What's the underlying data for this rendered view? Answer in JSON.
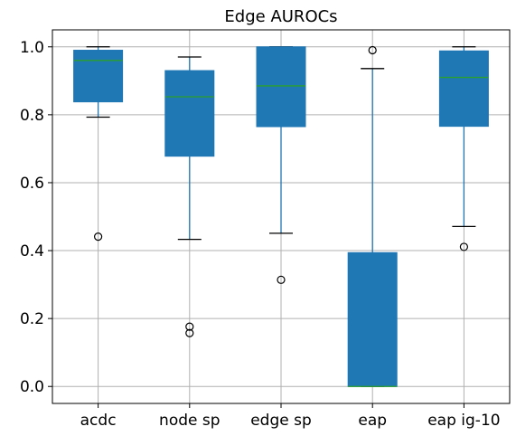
{
  "chart_data": {
    "type": "box",
    "title": "Edge AUROCs",
    "xlabel": "",
    "ylabel": "",
    "ylim": [
      -0.05,
      1.05
    ],
    "yticks": [
      0.0,
      0.2,
      0.4,
      0.6,
      0.8,
      1.0
    ],
    "ytick_labels": [
      "0.0",
      "0.2",
      "0.4",
      "0.6",
      "0.8",
      "1.0"
    ],
    "grid": true,
    "box_color": "#1f77b4",
    "median_color": "#2ca02c",
    "categories": [
      "acdc",
      "node sp",
      "edge sp",
      "eap",
      "eap ig-10"
    ],
    "boxes": [
      {
        "whisker_low": 0.793,
        "q1": 0.838,
        "median": 0.96,
        "q3": 0.99,
        "whisker_high": 1.0,
        "fliers": [
          0.441
        ]
      },
      {
        "whisker_low": 0.433,
        "q1": 0.678,
        "median": 0.853,
        "q3": 0.93,
        "whisker_high": 0.97,
        "fliers": [
          0.176,
          0.157
        ]
      },
      {
        "whisker_low": 0.451,
        "q1": 0.765,
        "median": 0.885,
        "q3": 1.0,
        "whisker_high": 1.0,
        "fliers": [
          0.314
        ]
      },
      {
        "whisker_low": 0.0,
        "q1": 0.0,
        "median": 0.0,
        "q3": 0.394,
        "whisker_high": 0.936,
        "fliers": [
          0.99
        ]
      },
      {
        "whisker_low": 0.471,
        "q1": 0.766,
        "median": 0.91,
        "q3": 0.988,
        "whisker_high": 1.0,
        "fliers": [
          0.411
        ]
      }
    ]
  }
}
